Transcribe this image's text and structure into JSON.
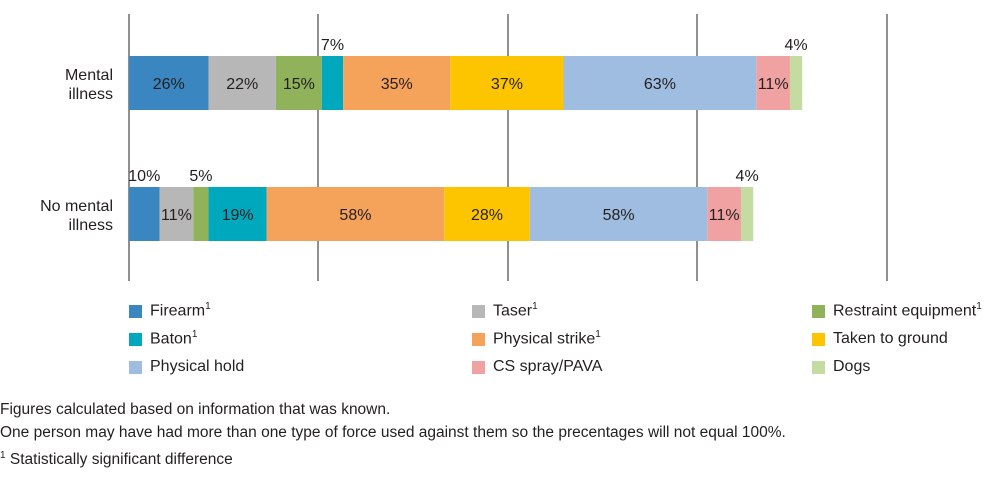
{
  "chart_data": {
    "type": "bar",
    "orientation": "horizontal",
    "stacked": true,
    "grid": "vertical",
    "legend_position": "bottom",
    "categories": [
      "Mental illness",
      "No mental illness"
    ],
    "series": [
      {
        "name": "Firearm",
        "sup": "1",
        "color": "#3a86c1",
        "values": [
          26,
          10
        ]
      },
      {
        "name": "Taser",
        "sup": "1",
        "color": "#b7b7b7",
        "values": [
          22,
          11
        ]
      },
      {
        "name": "Restraint equipment",
        "sup": "1",
        "color": "#8fb25b",
        "values": [
          15,
          5
        ]
      },
      {
        "name": "Baton",
        "sup": "1",
        "color": "#00a8bd",
        "values": [
          7,
          19
        ]
      },
      {
        "name": "Physical strike",
        "sup": "1",
        "color": "#f5a25b",
        "values": [
          35,
          58
        ]
      },
      {
        "name": "Taken to ground",
        "sup": "",
        "color": "#fcc500",
        "values": [
          37,
          28
        ]
      },
      {
        "name": "Physical hold",
        "sup": "",
        "color": "#9ebde0",
        "values": [
          63,
          58
        ]
      },
      {
        "name": "CS spray/PAVA",
        "sup": "",
        "color": "#f0a2a2",
        "values": [
          11,
          11
        ]
      },
      {
        "name": "Dogs",
        "sup": "",
        "color": "#c4dca2",
        "values": [
          4,
          4
        ]
      }
    ],
    "data_labels": [
      [
        "26%",
        "22%",
        "15%",
        "7%",
        "35%",
        "37%",
        "63%",
        "11%",
        "4%"
      ],
      [
        "10%",
        "11%",
        "5%",
        "19%",
        "58%",
        "28%",
        "58%",
        "11%",
        "4%"
      ]
    ]
  },
  "footnotes": {
    "line1": "Figures calculated based on information that was known.",
    "line2": "One person may have had more than one type of force used against them so the precentages will not equal 100%.",
    "sup": "1",
    "line3": " Statistically significant difference"
  }
}
